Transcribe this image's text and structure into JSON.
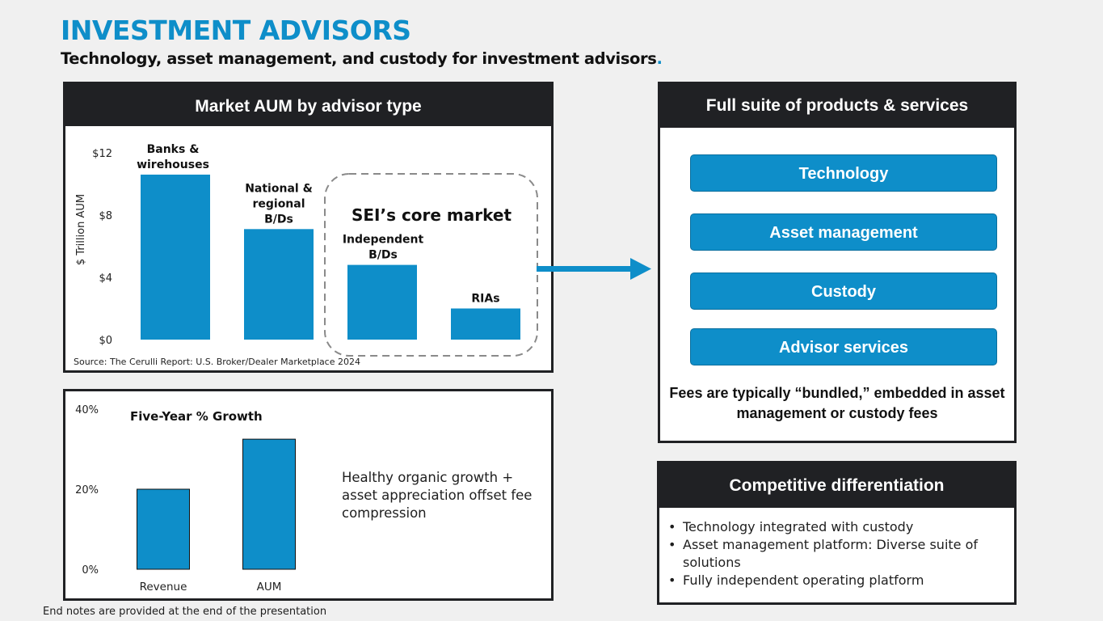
{
  "header": {
    "title": "INVESTMENT ADVISORS",
    "subtitle": "Technology, asset management, and custody for investment advisors",
    "subtitle_end": "."
  },
  "aum_panel": {
    "title": "Market AUM by advisor type",
    "source": "Source: The Cerulli Report: U.S. Broker/Dealer Marketplace 2024",
    "core_market_label": "SEI’s core market"
  },
  "growth_panel": {
    "note": "Healthy organic growth + asset appreciation offset fee compression"
  },
  "suite_panel": {
    "title": "Full suite of products & services",
    "services": [
      "Technology",
      "Asset management",
      "Custody",
      "Advisor services"
    ],
    "fees_note": "Fees are typically “bundled,” embedded in asset management or custody fees"
  },
  "diff_panel": {
    "title": "Competitive differentiation",
    "items": [
      "Technology integrated with custody",
      "Asset management platform: Diverse suite of solutions",
      "Fully independent operating platform"
    ]
  },
  "endnote": "End notes are provided at the end of the presentation",
  "colors": {
    "accent": "#0e8ec9",
    "dark": "#202124"
  },
  "chart_data": [
    {
      "type": "bar",
      "title": "",
      "ylabel": "$ Trillion AUM",
      "ylim": [
        0,
        12
      ],
      "yticks": [
        0,
        4,
        8,
        12
      ],
      "ytick_labels": [
        "$0",
        "$4",
        "$8",
        "$12"
      ],
      "categories": [
        [
          "Banks &",
          "wirehouses"
        ],
        [
          "National &",
          "regional",
          "B/Ds"
        ],
        [
          "Independent",
          "B/Ds"
        ],
        [
          "RIAs"
        ]
      ],
      "values": [
        10.6,
        7.1,
        4.8,
        2.0
      ]
    },
    {
      "type": "bar",
      "title": "Five-Year % Growth",
      "ylim": [
        0,
        40
      ],
      "yticks": [
        0,
        20,
        40
      ],
      "ytick_labels": [
        "0%",
        "20%",
        "40%"
      ],
      "categories": [
        "Revenue",
        "AUM"
      ],
      "values": [
        20,
        32.5
      ]
    }
  ]
}
